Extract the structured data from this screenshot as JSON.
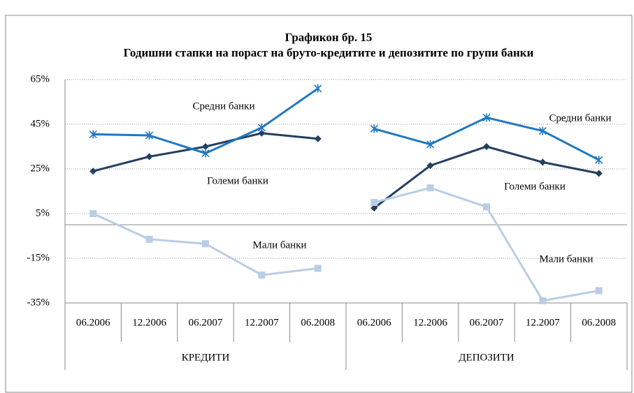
{
  "chart_data": {
    "type": "line",
    "title": "Графикон бр. 15",
    "subtitle": "Годишни стапки на пораст на бруто-кредитите и депозитите по групи банки",
    "categories": [
      {
        "group": "КРЕДИТИ",
        "labels": [
          "06.2006",
          "12.2006",
          "06.2007",
          "12.2007",
          "06.2008"
        ]
      },
      {
        "group": "ДЕПОЗИТИ",
        "labels": [
          "06.2006",
          "12.2006",
          "06.2007",
          "12.2007",
          "06.2008"
        ]
      }
    ],
    "series": [
      {
        "name": "Големи банки",
        "color": "#243f60",
        "marker": "diamond",
        "values": [
          [
            24,
            30.5,
            35,
            41,
            38.5
          ],
          [
            7.5,
            26.5,
            35,
            28,
            23
          ]
        ]
      },
      {
        "name": "Средни банки",
        "color": "#1f78c1",
        "marker": "star",
        "values": [
          [
            40.5,
            40,
            32,
            43.5,
            61
          ],
          [
            43,
            36,
            48,
            42,
            29
          ]
        ]
      },
      {
        "name": "Мали банки",
        "color": "#b9cde5",
        "marker": "square",
        "values": [
          [
            5,
            -6.5,
            -8.5,
            -22.5,
            -19.5
          ],
          [
            10,
            16.5,
            8,
            -34,
            -29.5
          ]
        ]
      }
    ],
    "ylim": [
      -35,
      65
    ],
    "yticks": [
      {
        "value": -35,
        "label": "-35%"
      },
      {
        "value": -15,
        "label": "-15%"
      },
      {
        "value": 5,
        "label": "5%"
      },
      {
        "value": 25,
        "label": "25%"
      },
      {
        "value": 45,
        "label": "45%"
      },
      {
        "value": 65,
        "label": "65%"
      }
    ],
    "grid": true
  }
}
